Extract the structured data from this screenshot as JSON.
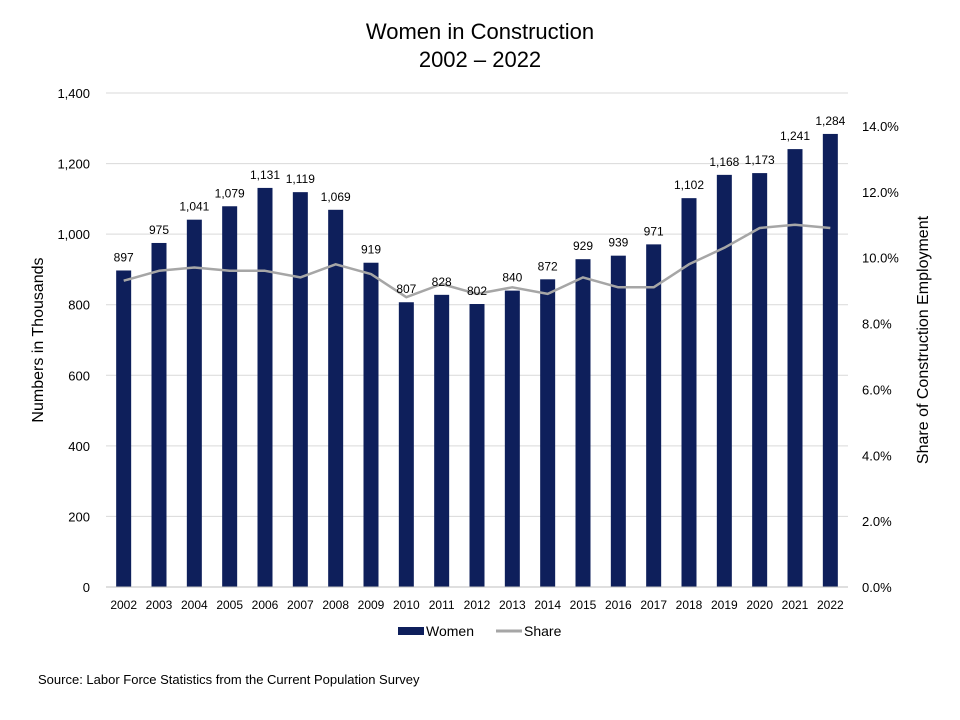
{
  "title_lines": [
    "Women in Construction",
    "2002 – 2022"
  ],
  "source": "Source: Labor Force Statistics from the Current Population Survey",
  "colors": {
    "bar": "#0E1F5B",
    "line": "#A6A6A6",
    "grid": "#D9D9D9",
    "axis": "#BFBFBF"
  },
  "chart_data": {
    "type": "bar",
    "title": "Women in Construction 2002 – 2022",
    "xlabel": "",
    "ylabel": "Numbers in Thousands",
    "y2label": "Share of Construction Employment",
    "categories": [
      "2002",
      "2003",
      "2004",
      "2005",
      "2006",
      "2007",
      "2008",
      "2009",
      "2010",
      "2011",
      "2012",
      "2013",
      "2014",
      "2015",
      "2016",
      "2017",
      "2018",
      "2019",
      "2020",
      "2021",
      "2022"
    ],
    "ylim": [
      0,
      1400
    ],
    "y_ticks": [
      0,
      200,
      400,
      600,
      800,
      1000,
      1200,
      1400
    ],
    "y_tick_labels": [
      "0",
      "200",
      "400",
      "600",
      "800",
      "1,000",
      "1,200",
      "1,400"
    ],
    "y2lim": [
      0,
      15
    ],
    "y2_ticks": [
      0,
      2,
      4,
      6,
      8,
      10,
      12,
      14
    ],
    "y2_tick_labels": [
      "0.0%",
      "2.0%",
      "4.0%",
      "6.0%",
      "8.0%",
      "10.0%",
      "12.0%",
      "14.0%"
    ],
    "grid": true,
    "legend_position": "bottom",
    "series": [
      {
        "name": "Women",
        "type": "bar",
        "axis": "left",
        "values": [
          897,
          975,
          1041,
          1079,
          1131,
          1119,
          1069,
          919,
          807,
          828,
          802,
          840,
          872,
          929,
          939,
          971,
          1102,
          1168,
          1173,
          1241,
          1284
        ],
        "labels": [
          "897",
          "975",
          "1,041",
          "1,079",
          "1,131",
          "1,119",
          "1,069",
          "919",
          "807",
          "828",
          "802",
          "840",
          "872",
          "929",
          "939",
          "971",
          "1,102",
          "1,168",
          "1,173",
          "1,241",
          "1,284"
        ]
      },
      {
        "name": "Share",
        "type": "line",
        "axis": "right",
        "values": [
          9.3,
          9.6,
          9.7,
          9.6,
          9.6,
          9.4,
          9.8,
          9.5,
          8.8,
          9.2,
          8.9,
          9.1,
          8.9,
          9.4,
          9.1,
          9.1,
          9.8,
          10.3,
          10.9,
          11.0,
          10.9
        ]
      }
    ]
  }
}
